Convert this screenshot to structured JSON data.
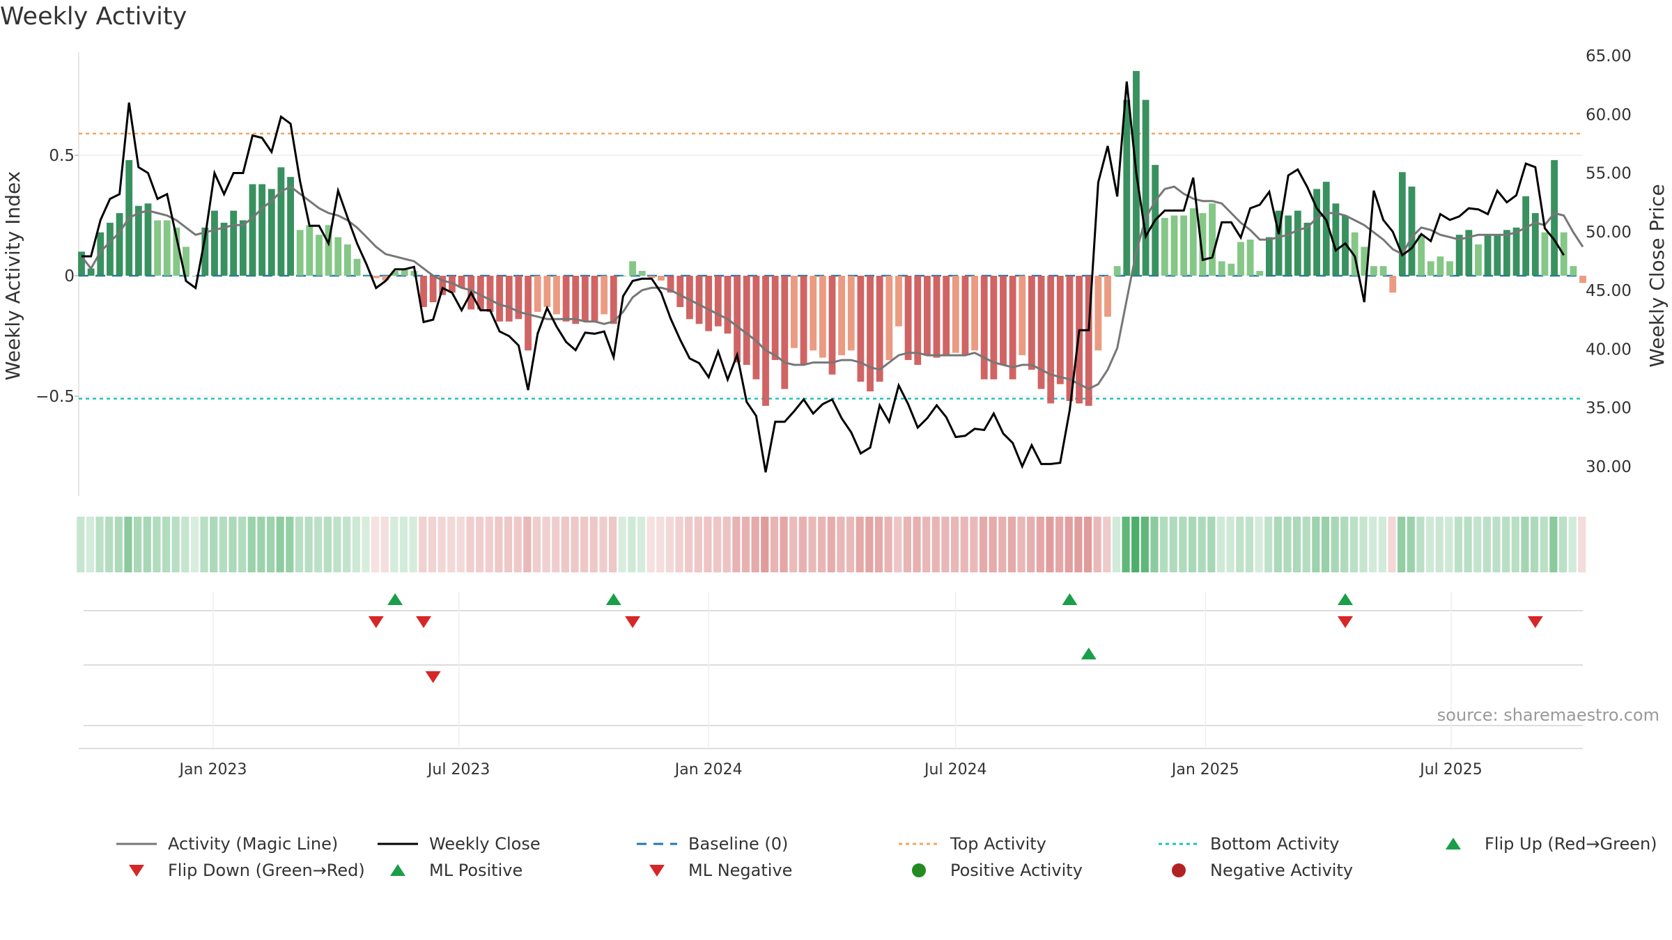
{
  "title": "Weekly Activity",
  "source": "source: sharemaestro.com",
  "colors": {
    "pos_dark": "#2e8b57",
    "pos_light": "#7ec47f",
    "neg_dark": "#cd5c5c",
    "neg_light": "#e9967a",
    "magic_line": "#777777",
    "close_line": "#000000",
    "baseline": "#1f77b4",
    "top_line": "#f4a460",
    "bottom_line": "#20c0c0",
    "marker_up": "#1a9e4a",
    "marker_down": "#d62728",
    "dot_pos": "#228b22",
    "dot_neg": "#b22222"
  },
  "legend": [
    {
      "label": "Activity (Magic Line)",
      "icon": "grey-line"
    },
    {
      "label": "Weekly Close",
      "icon": "black-line"
    },
    {
      "label": "Baseline (0)",
      "icon": "blue-dashed-line"
    },
    {
      "label": "Top Activity",
      "icon": "orange-dotted-line"
    },
    {
      "label": "Bottom Activity",
      "icon": "cyan-dotted-line"
    },
    {
      "label": "Flip Up (Red→Green)",
      "icon": "green-triangle-up"
    },
    {
      "label": "Flip Down (Green→Red)",
      "icon": "red-triangle-down"
    },
    {
      "label": "ML Positive",
      "icon": "green-triangle-up"
    },
    {
      "label": "ML Negative",
      "icon": "red-triangle-down"
    },
    {
      "label": "Positive Activity",
      "icon": "green-dot"
    },
    {
      "label": "Negative Activity",
      "icon": "red-dot"
    }
  ],
  "chart_data": {
    "type": "bar",
    "y_left_label": "Weekly Activity Index",
    "y_right_label": "Weekly Close Price",
    "y_left_ticks": [
      "0.5",
      "0",
      "−0.5"
    ],
    "y_right_ticks": [
      "65.00",
      "60.00",
      "55.00",
      "50.00",
      "45.00",
      "40.00",
      "35.00",
      "30.00"
    ],
    "x_tick_labels": [
      "Jan 2023",
      "Jul 2023",
      "Jan 2024",
      "Jul 2024",
      "Jan 2025",
      "Jul 2025"
    ],
    "x_tick_dates": [
      "2023-01-01",
      "2023-07-01",
      "2024-01-01",
      "2024-07-01",
      "2025-01-01",
      "2025-07-01"
    ],
    "start_date": "2022-09-26",
    "ylim_left": [
      -0.92,
      0.92
    ],
    "ylim_right": [
      27.0,
      65.0
    ],
    "top_activity": 0.59,
    "bottom_activity": -0.51,
    "baseline": 0,
    "activity": [
      0.1,
      0.03,
      0.18,
      0.22,
      0.26,
      0.48,
      0.29,
      0.3,
      0.23,
      0.23,
      0.2,
      0.12,
      0.0,
      0.2,
      0.27,
      0.22,
      0.27,
      0.23,
      0.38,
      0.38,
      0.36,
      0.45,
      0.41,
      0.19,
      0.21,
      0.17,
      0.21,
      0.16,
      0.13,
      0.07,
      0.0,
      -0.01,
      -0.02,
      0.02,
      0.03,
      0.02,
      -0.13,
      -0.11,
      -0.08,
      -0.07,
      -0.05,
      -0.14,
      -0.14,
      -0.15,
      -0.19,
      -0.19,
      -0.18,
      -0.31,
      -0.15,
      -0.13,
      -0.16,
      -0.19,
      -0.2,
      -0.19,
      -0.19,
      -0.16,
      -0.2,
      0.0,
      0.06,
      0.02,
      -0.01,
      -0.02,
      -0.07,
      -0.13,
      -0.18,
      -0.2,
      -0.23,
      -0.21,
      -0.24,
      -0.36,
      -0.37,
      -0.43,
      -0.54,
      -0.35,
      -0.47,
      -0.3,
      -0.37,
      -0.31,
      -0.34,
      -0.41,
      -0.33,
      -0.31,
      -0.44,
      -0.48,
      -0.44,
      -0.35,
      -0.21,
      -0.35,
      -0.37,
      -0.33,
      -0.34,
      -0.33,
      -0.32,
      -0.33,
      -0.31,
      -0.43,
      -0.43,
      -0.37,
      -0.43,
      -0.33,
      -0.39,
      -0.47,
      -0.53,
      -0.45,
      -0.52,
      -0.53,
      -0.54,
      -0.31,
      -0.17,
      0.04,
      0.73,
      0.85,
      0.73,
      0.46,
      0.24,
      0.25,
      0.25,
      0.28,
      0.26,
      0.3,
      0.06,
      0.05,
      0.14,
      0.15,
      0.02,
      0.16,
      0.27,
      0.25,
      0.27,
      0.22,
      0.36,
      0.39,
      0.3,
      0.25,
      0.18,
      0.12,
      0.04,
      0.04,
      -0.07,
      0.43,
      0.37,
      0.17,
      0.06,
      0.08,
      0.06,
      0.17,
      0.19,
      0.13,
      0.17,
      0.17,
      0.19,
      0.2,
      0.33,
      0.26,
      0.18,
      0.48,
      0.18,
      0.04,
      -0.03
    ],
    "magic_line": [
      0.08,
      0.03,
      0.1,
      0.14,
      0.18,
      0.24,
      0.26,
      0.27,
      0.26,
      0.25,
      0.23,
      0.2,
      0.17,
      0.18,
      0.19,
      0.2,
      0.21,
      0.21,
      0.24,
      0.28,
      0.31,
      0.35,
      0.37,
      0.34,
      0.31,
      0.28,
      0.26,
      0.25,
      0.23,
      0.2,
      0.16,
      0.12,
      0.09,
      0.08,
      0.07,
      0.06,
      0.03,
      0.0,
      -0.02,
      -0.03,
      -0.05,
      -0.06,
      -0.08,
      -0.1,
      -0.12,
      -0.13,
      -0.15,
      -0.16,
      -0.17,
      -0.18,
      -0.18,
      -0.18,
      -0.18,
      -0.19,
      -0.19,
      -0.2,
      -0.19,
      -0.15,
      -0.09,
      -0.06,
      -0.05,
      -0.05,
      -0.06,
      -0.08,
      -0.1,
      -0.12,
      -0.14,
      -0.16,
      -0.18,
      -0.21,
      -0.24,
      -0.27,
      -0.31,
      -0.33,
      -0.36,
      -0.37,
      -0.37,
      -0.36,
      -0.36,
      -0.36,
      -0.35,
      -0.35,
      -0.36,
      -0.38,
      -0.39,
      -0.36,
      -0.33,
      -0.32,
      -0.32,
      -0.33,
      -0.33,
      -0.33,
      -0.33,
      -0.33,
      -0.32,
      -0.34,
      -0.36,
      -0.37,
      -0.38,
      -0.37,
      -0.37,
      -0.39,
      -0.41,
      -0.42,
      -0.43,
      -0.45,
      -0.47,
      -0.45,
      -0.39,
      -0.3,
      -0.1,
      0.1,
      0.24,
      0.31,
      0.36,
      0.37,
      0.34,
      0.32,
      0.31,
      0.31,
      0.3,
      0.26,
      0.22,
      0.19,
      0.15,
      0.15,
      0.16,
      0.17,
      0.19,
      0.2,
      0.24,
      0.26,
      0.26,
      0.25,
      0.23,
      0.21,
      0.18,
      0.15,
      0.11,
      0.09,
      0.16,
      0.2,
      0.19,
      0.17,
      0.16,
      0.15,
      0.16,
      0.17,
      0.17,
      0.17,
      0.17,
      0.18,
      0.2,
      0.22,
      0.21,
      0.26,
      0.25,
      0.18,
      0.12
    ],
    "weekly_close": [
      47.9,
      47.9,
      51.0,
      52.8,
      53.2,
      61.0,
      55.5,
      55.0,
      52.8,
      53.2,
      49.5,
      45.8,
      45.2,
      49.5,
      55.0,
      53.2,
      55.0,
      55.0,
      58.2,
      58.0,
      56.8,
      59.8,
      59.2,
      54.3,
      50.5,
      50.5,
      49.0,
      53.5,
      51.2,
      49.0,
      47.2,
      45.2,
      45.8,
      46.8,
      46.8,
      47.0,
      42.3,
      42.5,
      45.2,
      44.8,
      43.3,
      44.8,
      43.3,
      43.3,
      41.5,
      41.1,
      40.3,
      36.5,
      41.3,
      43.5,
      41.9,
      40.6,
      39.9,
      41.4,
      41.3,
      41.5,
      39.3,
      44.5,
      45.8,
      46.0,
      46.0,
      44.8,
      42.6,
      40.8,
      39.2,
      38.8,
      37.6,
      39.8,
      37.4,
      39.5,
      35.5,
      34.3,
      29.5,
      33.8,
      33.8,
      34.7,
      35.7,
      34.5,
      35.3,
      35.7,
      34.1,
      32.9,
      31.1,
      31.6,
      35.2,
      33.8,
      36.9,
      35.3,
      33.3,
      34.1,
      35.2,
      34.2,
      32.5,
      32.6,
      33.2,
      33.1,
      34.5,
      32.8,
      32.0,
      30.0,
      31.8,
      30.2,
      30.2,
      30.3,
      34.8,
      41.6,
      41.6,
      54.2,
      57.3,
      53.0,
      62.8,
      55.0,
      49.6,
      51.0,
      51.8,
      51.8,
      51.8,
      54.6,
      47.6,
      47.8,
      50.8,
      50.8,
      49.5,
      52.0,
      52.3,
      53.4,
      49.8,
      54.8,
      55.3,
      53.8,
      52.0,
      51.0,
      48.4,
      49.0,
      47.9,
      44.0,
      53.5,
      51.0,
      50.0,
      48.0,
      48.6,
      49.8,
      49.2,
      51.5,
      51.0,
      51.3,
      52.0,
      51.9,
      51.5,
      53.5,
      52.5,
      53.1,
      55.8,
      55.5,
      50.3,
      49.3,
      48.0
    ],
    "flip_up": [
      33,
      56,
      104,
      133
    ],
    "flip_down": [
      31,
      36,
      58,
      133,
      153
    ],
    "ml_positive": [
      106
    ],
    "ml_negative": [
      37
    ]
  }
}
